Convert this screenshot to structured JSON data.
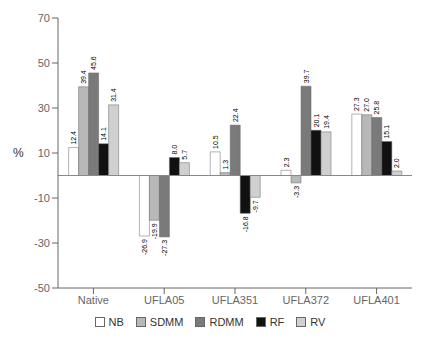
{
  "chart_data": {
    "type": "bar",
    "categories": [
      "Native",
      "UFLA05",
      "UFLA351",
      "UFLA372",
      "UFLA401"
    ],
    "series": [
      {
        "name": "NB",
        "color": "#ffffff",
        "values": [
          12.4,
          -26.9,
          10.5,
          2.3,
          27.3
        ],
        "value_labels": [
          "12.4",
          "-26.9",
          "10.5",
          "2.3",
          "27.3"
        ]
      },
      {
        "name": "SDMM",
        "color": "#b8b8b8",
        "values": [
          39.4,
          -19.9,
          1.3,
          -3.3,
          27.0
        ],
        "value_labels": [
          "39.4",
          "-19.9",
          "1.3",
          "-3.3",
          "27.0"
        ]
      },
      {
        "name": "RDMM",
        "color": "#7a7a7a",
        "values": [
          45.6,
          -27.3,
          22.4,
          39.7,
          25.8
        ],
        "value_labels": [
          "45.6",
          "-27.3",
          "22.4",
          "39.7",
          "25.8"
        ]
      },
      {
        "name": "RF",
        "color": "#111111",
        "values": [
          14.1,
          8.0,
          -16.8,
          20.1,
          15.1
        ],
        "value_labels": [
          "14.1",
          "8.0",
          "-16.8",
          "20.1",
          "15.1"
        ]
      },
      {
        "name": "RV",
        "color": "#d0d0d0",
        "values": [
          31.4,
          5.7,
          -9.7,
          19.4,
          2.0
        ],
        "value_labels": [
          "31.4",
          "5.7",
          "-9.7",
          "19.4",
          "2.0"
        ]
      }
    ],
    "ylabel": "%",
    "ylim": [
      -50,
      70
    ],
    "yticks": [
      -50,
      -30,
      -10,
      10,
      30,
      50,
      70
    ],
    "data_labels": true,
    "grid": false,
    "legend": "bottom"
  }
}
